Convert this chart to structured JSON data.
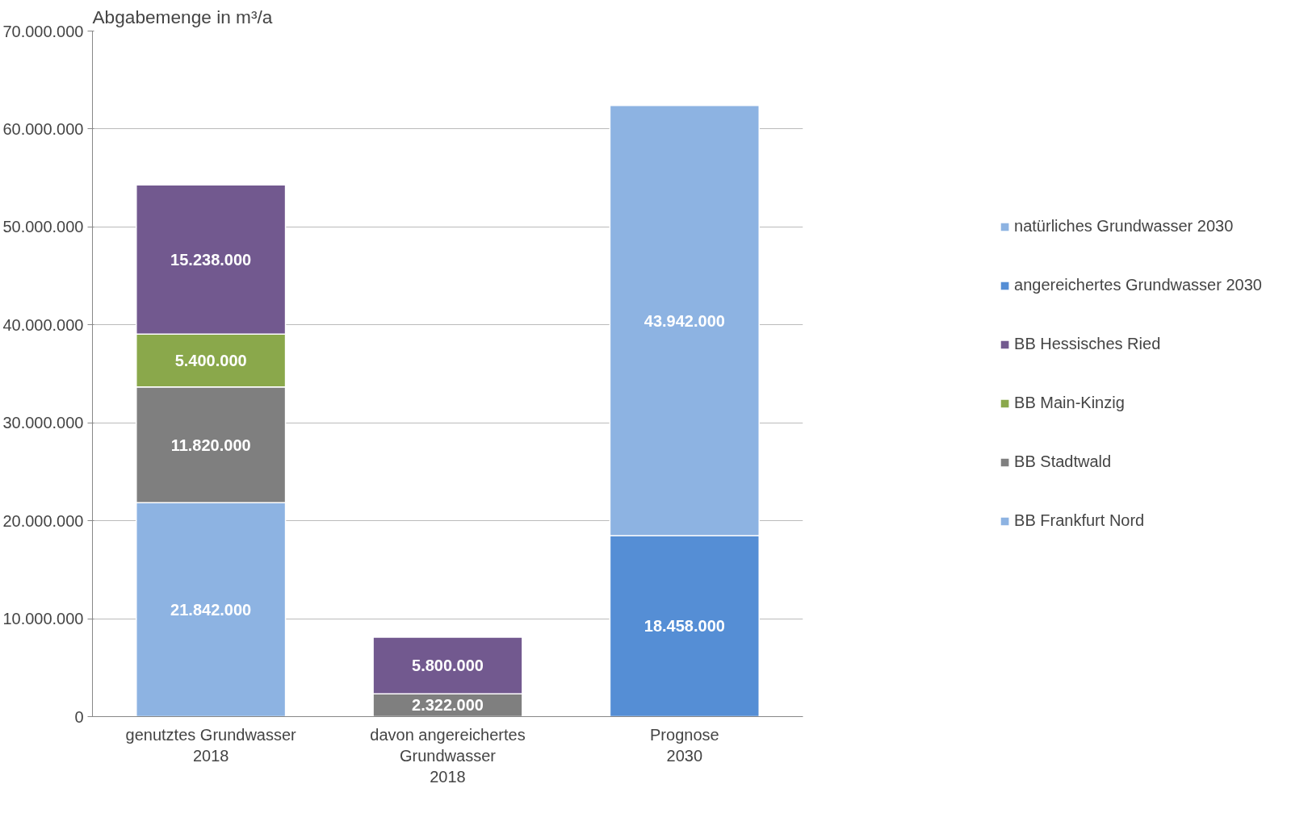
{
  "chart_data": {
    "type": "bar",
    "stacked": true,
    "ylabel": "Abgabemenge in m³/a",
    "categories": [
      "genutztes Grundwasser\n2018",
      "davon angereichertes\nGrundwasser\n2018",
      "Prognose\n2030"
    ],
    "series": [
      {
        "name": "BB Frankfurt Nord",
        "color": "#8db3e2",
        "values": [
          21842000,
          null,
          null
        ],
        "value_labels": [
          "21.842.000",
          null,
          null
        ]
      },
      {
        "name": "BB Stadtwald",
        "color": "#7f7f7f",
        "values": [
          11820000,
          2322000,
          null
        ],
        "value_labels": [
          "11.820.000",
          "2.322.000",
          null
        ]
      },
      {
        "name": "BB Main-Kinzig",
        "color": "#8aa84b",
        "values": [
          5400000,
          null,
          null
        ],
        "value_labels": [
          "5.400.000",
          null,
          null
        ]
      },
      {
        "name": "BB Hessisches Ried",
        "color": "#72598f",
        "values": [
          15238000,
          5800000,
          null
        ],
        "value_labels": [
          "15.238.000",
          "5.800.000",
          null
        ]
      },
      {
        "name": "angereichertes Grundwasser 2030",
        "color": "#558ed5",
        "values": [
          null,
          null,
          18458000
        ],
        "value_labels": [
          null,
          null,
          "18.458.000"
        ]
      },
      {
        "name": "natürliches Grundwasser 2030",
        "color": "#8db3e2",
        "values": [
          null,
          null,
          43942000
        ],
        "value_labels": [
          null,
          null,
          "43.942.000"
        ]
      }
    ],
    "ylim": [
      0,
      70000000
    ],
    "yticks": [
      {
        "value": 0,
        "label": "0"
      },
      {
        "value": 10000000,
        "label": "10.000.000"
      },
      {
        "value": 20000000,
        "label": "20.000.000"
      },
      {
        "value": 30000000,
        "label": "30.000.000"
      },
      {
        "value": 40000000,
        "label": "40.000.000"
      },
      {
        "value": 50000000,
        "label": "50.000.000"
      },
      {
        "value": 60000000,
        "label": "60.000.000"
      },
      {
        "value": 70000000,
        "label": "70.000.000"
      }
    ],
    "grid": "y",
    "legend": "right"
  }
}
